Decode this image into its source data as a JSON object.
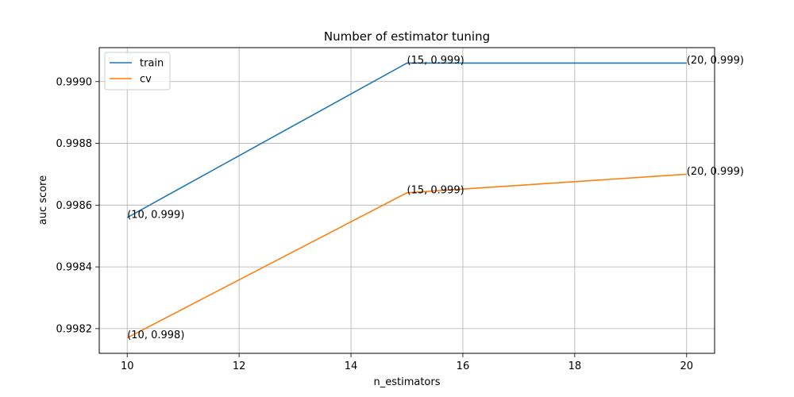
{
  "chart_data": {
    "type": "line",
    "title": "Number of estimator tuning",
    "xlabel": "n_estimators",
    "ylabel": "auc score",
    "x": [
      10,
      15,
      20
    ],
    "xlim": [
      9.5,
      20.5
    ],
    "ylim": [
      0.99812,
      0.99911
    ],
    "xticks": [
      10,
      12,
      14,
      16,
      18,
      20
    ],
    "xtick_labels": [
      "10",
      "12",
      "14",
      "16",
      "18",
      "20"
    ],
    "yticks": [
      0.9982,
      0.9984,
      0.9986,
      0.9988,
      0.999
    ],
    "ytick_labels": [
      "0.9982",
      "0.9984",
      "0.9986",
      "0.9988",
      "0.9990"
    ],
    "grid": true,
    "legend_position": "top-left",
    "series": [
      {
        "name": "train",
        "color": "#1f77b4",
        "values": [
          0.99856,
          0.99906,
          0.99906
        ],
        "annotations": [
          "(10, 0.999)",
          "(15, 0.999)",
          "(20, 0.999)"
        ]
      },
      {
        "name": "cv",
        "color": "#ff7f0e",
        "values": [
          0.99817,
          0.99864,
          0.9987
        ],
        "annotations": [
          "(10, 0.998)",
          "(15, 0.999)",
          "(20, 0.999)"
        ]
      }
    ]
  }
}
